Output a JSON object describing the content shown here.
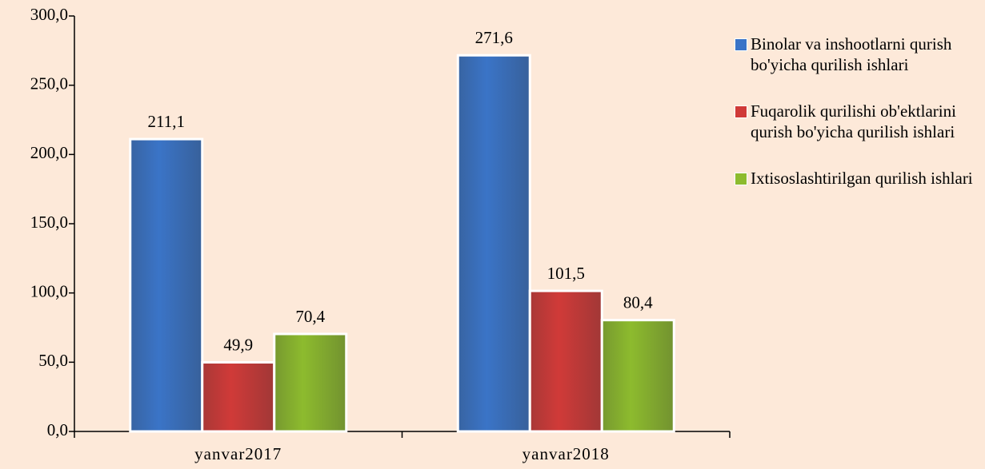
{
  "chart_data": {
    "type": "bar",
    "categories": [
      "yanvar2017",
      "yanvar2018"
    ],
    "series": [
      {
        "name": "Binolar va inshootlarni qurish bo'yicha qurilish ishlari",
        "color": "#3a74c7",
        "values": [
          211.1,
          271.6
        ],
        "value_labels": [
          "211,1",
          "271,6"
        ]
      },
      {
        "name": "Fuqarolik qurilishi ob'ektlarini qurish bo'yicha qurilish ishlari",
        "color": "#d03a38",
        "values": [
          49.9,
          101.5
        ],
        "value_labels": [
          "49,9",
          "101,5"
        ]
      },
      {
        "name": "Ixtisoslashtirilgan qurilish ishlari",
        "color": "#8dbb2e",
        "values": [
          70.4,
          80.4
        ],
        "value_labels": [
          "70,4",
          "80,4"
        ]
      }
    ],
    "ylim": [
      0,
      300
    ],
    "yticks": [
      {
        "value": 0,
        "label": "0,0"
      },
      {
        "value": 50,
        "label": "50,0"
      },
      {
        "value": 100,
        "label": "100,0"
      },
      {
        "value": 150,
        "label": "150,0"
      },
      {
        "value": 200,
        "label": "200,0"
      },
      {
        "value": 250,
        "label": "250,0"
      },
      {
        "value": 300,
        "label": "300,0"
      }
    ],
    "legend": "right"
  }
}
